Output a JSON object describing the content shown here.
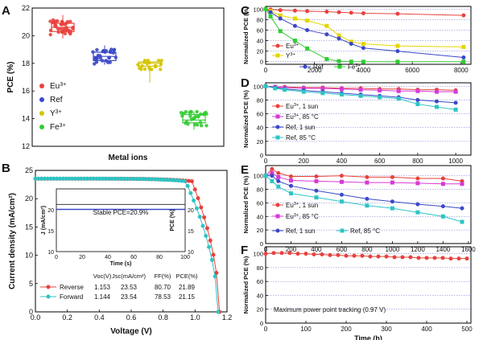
{
  "figure": {
    "panel_letters": [
      "A",
      "B",
      "C",
      "D",
      "E",
      "F"
    ]
  },
  "chart_data": [
    {
      "panel": "A",
      "type": "scatter",
      "xlabel": "Metal ions",
      "ylabel": "PCE (%)",
      "ylim": [
        12,
        22
      ],
      "yticks": [
        12,
        14,
        16,
        18,
        20,
        22
      ],
      "legend": {
        "placement": "left",
        "entries": [
          "Eu3+",
          "Ref",
          "Y3+",
          "Fe3+"
        ]
      },
      "categories": [
        "Eu3+",
        "Ref",
        "Y3+",
        "Fe3+"
      ],
      "colors": [
        "#e8413c",
        "#3a48c8",
        "#d2c400",
        "#33cc33"
      ],
      "boxes": [
        {
          "name": "Eu3+",
          "q1": 20.3,
          "median": 20.6,
          "q3": 20.9,
          "min": 19.8,
          "max": 21.5
        },
        {
          "name": "Ref",
          "q1": 18.2,
          "median": 18.5,
          "q3": 18.8,
          "min": 17.9,
          "max": 19.3
        },
        {
          "name": "Y3+",
          "q1": 17.8,
          "median": 18.0,
          "q3": 18.1,
          "min": 16.6,
          "max": 18.2
        },
        {
          "name": "Fe3+",
          "q1": 13.7,
          "median": 13.9,
          "q3": 14.3,
          "min": 13.2,
          "max": 14.5
        }
      ]
    },
    {
      "panel": "B",
      "type": "line",
      "xlabel": "Voltage (V)",
      "ylabel": "Current density (mA/cm²)",
      "xlim": [
        0,
        1.2
      ],
      "ylim": [
        0,
        25
      ],
      "xticks": [
        "0.0",
        "0.2",
        "0.4",
        "0.6",
        "0.8",
        "1.0",
        "1.2"
      ],
      "yticks": [
        0,
        5,
        10,
        15,
        20,
        25
      ],
      "series": [
        {
          "name": "Reverse",
          "color": "#e8413c",
          "jsc": 23.53,
          "voc": 1.153,
          "knee": 0.98
        },
        {
          "name": "Forward",
          "color": "#2ec4c4",
          "jsc": 23.54,
          "voc": 1.144,
          "knee": 0.94
        }
      ],
      "table": {
        "headers": [
          "Voc(V)",
          "Jsc(mA/cm²)",
          "FF(%)",
          "PCE(%)"
        ],
        "rows": [
          [
            "Reverse",
            "1.153",
            "23.53",
            "80.70",
            "21.89"
          ],
          [
            "Forward",
            "1.144",
            "23.54",
            "78.53",
            "21.15"
          ]
        ]
      },
      "inset": {
        "xlabel": "Time (s)",
        "ylabel_left": "J (mA/cm²)",
        "ylabel_right": "PCE (%)",
        "xlim": [
          0,
          100
        ],
        "xticks": [
          0,
          20,
          40,
          60,
          80,
          100
        ],
        "ylim": [
          10,
          25
        ],
        "yticks": [
          10,
          15,
          20
        ],
        "annotation": "Stable PCE=20.9%",
        "j_value": 20.1,
        "pce_value": 20.9
      }
    },
    {
      "panel": "C",
      "type": "line",
      "xlabel": "",
      "ylabel": "Normalized PCE (%)",
      "xlim": [
        0,
        8400
      ],
      "ylim": [
        -5,
        105
      ],
      "xticks": [
        0,
        2000,
        4000,
        6000,
        8000
      ],
      "yticks": [
        0,
        20,
        40,
        60,
        80,
        100
      ],
      "series": [
        {
          "name": "Eu3+",
          "color": "#e8413c",
          "x": [
            0,
            200,
            600,
            1200,
            1700,
            2500,
            3000,
            3500,
            4000,
            5400,
            8100
          ],
          "y": [
            100,
            99,
            98,
            97,
            96,
            95,
            94,
            93,
            92,
            91,
            88
          ]
        },
        {
          "name": "Y3+",
          "color": "#e6d600",
          "x": [
            0,
            200,
            600,
            1200,
            1700,
            2500,
            3000,
            3500,
            4000,
            5400,
            8100
          ],
          "y": [
            100,
            96,
            88,
            82,
            78,
            68,
            50,
            38,
            34,
            30,
            28
          ]
        },
        {
          "name": "Ref",
          "color": "#3a48c8",
          "x": [
            0,
            200,
            600,
            1200,
            1700,
            2500,
            3000,
            3500,
            4000,
            5400,
            8100
          ],
          "y": [
            100,
            94,
            82,
            68,
            60,
            52,
            44,
            34,
            26,
            20,
            8
          ]
        },
        {
          "name": "Fe3+",
          "color": "#33cc33",
          "x": [
            0,
            200,
            600,
            1200,
            1700,
            2500,
            3000,
            3500,
            4000,
            5400,
            8100
          ],
          "y": [
            100,
            86,
            58,
            40,
            25,
            5,
            1,
            0,
            0,
            0,
            0
          ]
        }
      ]
    },
    {
      "panel": "D",
      "type": "line",
      "xlabel": "",
      "ylabel": "Normalized PCE (%)",
      "xlim": [
        0,
        1080
      ],
      "ylim": [
        0,
        105
      ],
      "xticks": [
        0,
        200,
        400,
        600,
        800,
        1000
      ],
      "yticks": [
        0,
        20,
        40,
        60,
        80,
        100
      ],
      "series": [
        {
          "name": "Eu3+, 1 sun",
          "color": "#e8413c",
          "x": [
            0,
            50,
            100,
            200,
            300,
            400,
            500,
            600,
            700,
            800,
            900,
            1000
          ],
          "y": [
            100,
            99,
            99,
            98,
            98,
            97,
            97,
            96,
            96,
            95,
            95,
            94
          ]
        },
        {
          "name": "Eu3+, 85 °C",
          "color": "#d63ad6",
          "x": [
            0,
            50,
            100,
            200,
            300,
            400,
            500,
            600,
            700,
            800,
            900,
            1000
          ],
          "y": [
            100,
            99,
            98,
            97,
            97,
            96,
            95,
            94,
            93,
            93,
            92,
            92
          ]
        },
        {
          "name": "Ref, 1 sun",
          "color": "#3a48c8",
          "x": [
            0,
            50,
            100,
            200,
            300,
            400,
            500,
            600,
            700,
            800,
            900,
            1000
          ],
          "y": [
            100,
            98,
            96,
            94,
            92,
            90,
            88,
            86,
            84,
            80,
            78,
            76
          ]
        },
        {
          "name": "Ref, 85 °C",
          "color": "#2ec4c4",
          "x": [
            0,
            50,
            100,
            200,
            300,
            400,
            500,
            600,
            700,
            800,
            900,
            1000
          ],
          "y": [
            100,
            97,
            95,
            92,
            90,
            88,
            86,
            84,
            82,
            74,
            70,
            66
          ]
        }
      ]
    },
    {
      "panel": "E",
      "type": "line",
      "xlabel": "",
      "ylabel": "Normalized PCE (%)",
      "xlim": [
        0,
        1620
      ],
      "ylim": [
        0,
        115
      ],
      "xticks": [
        0,
        200,
        400,
        600,
        800,
        1000,
        1200,
        1400,
        1600
      ],
      "yticks": [
        0,
        20,
        40,
        60,
        80,
        100
      ],
      "series": [
        {
          "name": "Eu3+, 1 sun",
          "color": "#e8413c",
          "x": [
            0,
            50,
            100,
            200,
            400,
            600,
            800,
            1000,
            1200,
            1400,
            1550
          ],
          "y": [
            100,
            110,
            104,
            99,
            99,
            100,
            98,
            98,
            96,
            96,
            92
          ]
        },
        {
          "name": "Eu3+, 85 °C",
          "color": "#d63ad6",
          "x": [
            0,
            50,
            100,
            200,
            400,
            600,
            800,
            1000,
            1200,
            1400,
            1550
          ],
          "y": [
            100,
            104,
            98,
            93,
            92,
            91,
            90,
            90,
            89,
            88,
            88
          ]
        },
        {
          "name": "Ref, 1 sun",
          "color": "#3a48c8",
          "x": [
            0,
            50,
            100,
            200,
            400,
            600,
            800,
            1000,
            1200,
            1400,
            1550
          ],
          "y": [
            100,
            100,
            92,
            85,
            78,
            72,
            66,
            62,
            58,
            55,
            52
          ]
        },
        {
          "name": "Ref, 85 °C",
          "color": "#2ec4c4",
          "x": [
            0,
            50,
            100,
            200,
            400,
            600,
            800,
            1000,
            1200,
            1400,
            1550
          ],
          "y": [
            100,
            92,
            84,
            74,
            68,
            62,
            56,
            52,
            46,
            40,
            32
          ]
        }
      ]
    },
    {
      "panel": "F",
      "type": "line",
      "xlabel": "Time (h)",
      "ylabel": "Normalized PCE (%)",
      "xlim": [
        0,
        510
      ],
      "ylim": [
        0,
        110
      ],
      "xticks": [
        0,
        100,
        200,
        300,
        400,
        500
      ],
      "yticks": [
        0,
        20,
        40,
        60,
        80,
        100
      ],
      "annotation": "Maximum power point tracking (0.97 V)",
      "series": [
        {
          "name": "MPPT",
          "color": "#e8413c",
          "x": [
            0,
            20,
            40,
            60,
            80,
            100,
            120,
            140,
            160,
            180,
            200,
            220,
            240,
            260,
            280,
            300,
            320,
            340,
            360,
            380,
            400,
            420,
            440,
            460,
            480,
            500
          ],
          "y": [
            100,
            101,
            101,
            101,
            100,
            100,
            99,
            99,
            98,
            98,
            97,
            97,
            97,
            96,
            96,
            96,
            95,
            95,
            95,
            94,
            94,
            94,
            94,
            93,
            93,
            93
          ]
        }
      ]
    }
  ]
}
